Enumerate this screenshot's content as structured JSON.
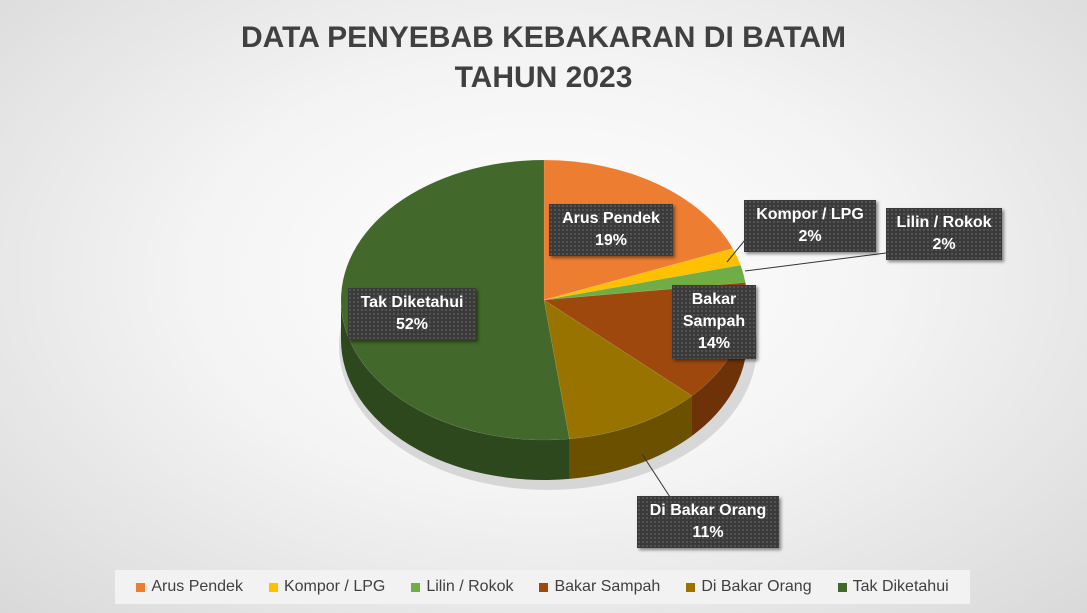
{
  "chart_data": {
    "type": "pie",
    "title_line1": "DATA PENYEBAB KEBAKARAN DI BATAM",
    "title_line2": "TAHUN 2023",
    "slices": [
      {
        "label": "Arus Pendek",
        "value": 19,
        "display": "19%",
        "color": "#ED7D31",
        "side": "#B75F25"
      },
      {
        "label": "Kompor / LPG",
        "value": 2,
        "display": "2%",
        "color": "#FFC000",
        "side": "#C49300"
      },
      {
        "label": "Lilin / Rokok",
        "value": 2,
        "display": "2%",
        "color": "#70AD47",
        "side": "#548235"
      },
      {
        "label": "Bakar Sampah",
        "value": 14,
        "display": "14%",
        "color": "#9E480E",
        "side": "#6E3209"
      },
      {
        "label": "Di Bakar Orang",
        "value": 11,
        "display": "11%",
        "color": "#997300",
        "side": "#6B5000"
      },
      {
        "label": "Tak Diketahui",
        "value": 52,
        "display": "52%",
        "color": "#43682B",
        "side": "#2E481E"
      }
    ],
    "legend_position": "bottom"
  }
}
